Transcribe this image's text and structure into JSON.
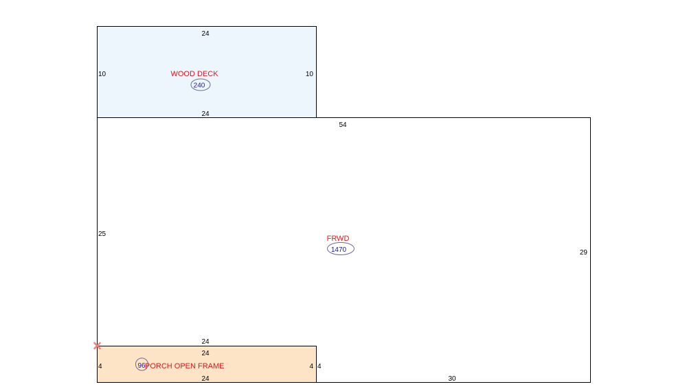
{
  "colors": {
    "deck_fill": "#eef6fd",
    "porch_fill": "#fde4c7",
    "outline": "#000000",
    "label_red": "#e8121a",
    "area_blue": "#1818a8",
    "ellipse_stroke": "#6a6a9a",
    "marker": "#f08080"
  },
  "marker_icon": "x-cross",
  "areas": {
    "wood_deck": {
      "label": "WOOD DECK",
      "area": "240",
      "dims": {
        "top": "24",
        "left": "10",
        "right": "10",
        "bottom": "24"
      }
    },
    "frwd": {
      "label": "FRWD",
      "area": "1470",
      "dims": {
        "top": "54",
        "left": "25",
        "right": "29",
        "bottom": "30",
        "porch_side": "4"
      }
    },
    "porch": {
      "label": "PORCH OPEN FRAME",
      "area": "96",
      "dims": {
        "top_outer": "24",
        "top": "24",
        "left": "4",
        "right": "4",
        "bottom": "24"
      }
    }
  }
}
